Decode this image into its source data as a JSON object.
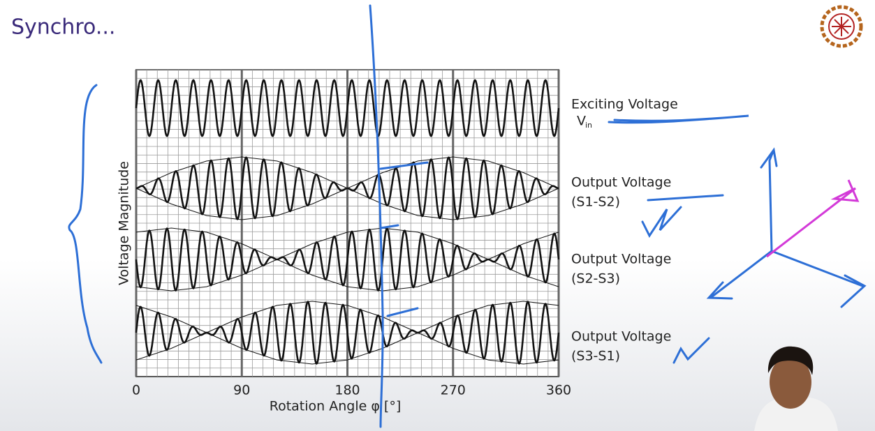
{
  "chart_data": {
    "type": "waveform",
    "title": "Synchro...",
    "xlabel": "Rotation Angle φ [°]",
    "ylabel": "Voltage Magnitude",
    "x": [
      0,
      30,
      60,
      90,
      120,
      150,
      180,
      210,
      240,
      270,
      300,
      330,
      360
    ],
    "xlim": [
      0,
      360
    ],
    "xticks": [
      0,
      90,
      180,
      270,
      360
    ],
    "grid": true,
    "color": "#111111",
    "series": [
      {
        "name": "Exciting Voltage",
        "symbol": {
          "base": "V",
          "sub": "in"
        },
        "values": [
          1,
          1,
          1,
          1,
          1,
          1,
          1,
          1,
          1,
          1,
          1,
          1,
          1
        ]
      },
      {
        "name": "Output Voltage",
        "pair": "(S1-S2)",
        "values": [
          0,
          0.5,
          0.87,
          1,
          0.87,
          0.5,
          0,
          -0.5,
          -0.87,
          -1,
          -0.87,
          -0.5,
          0
        ]
      },
      {
        "name": "Output Voltage",
        "pair": "(S2-S3)",
        "values": [
          -0.87,
          -1,
          -0.87,
          -0.5,
          0,
          0.5,
          0.87,
          1,
          0.87,
          0.5,
          0,
          -0.5,
          -0.87
        ]
      },
      {
        "name": "Output Voltage",
        "pair": "(S3-S1)",
        "values": [
          0.87,
          0.5,
          0,
          -0.5,
          -0.87,
          -1,
          -0.87,
          -0.5,
          0,
          0.5,
          0.87,
          1,
          0.87
        ]
      }
    ]
  }
}
